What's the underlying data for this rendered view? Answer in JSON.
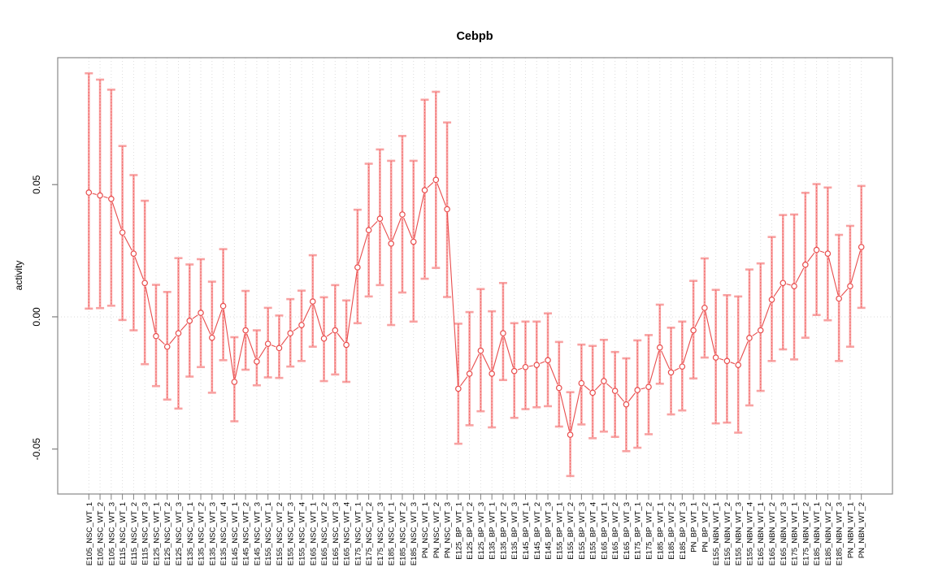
{
  "chart_data": {
    "type": "line",
    "title": "Cebpb",
    "xlabel": "",
    "ylabel": "activity",
    "ylim": [
      -0.067,
      0.098
    ],
    "grid": "dotted vertical gridline per category, dotted horizontal line at y=0",
    "legend": "none",
    "marker": "open-circle",
    "line_style": "segments-with-gaps",
    "colors": {
      "series": "#e84c4c",
      "error_bar": "#f8a2a2",
      "error_center_dotted": "#ef5f5f",
      "gridline": "#dcdcdc",
      "zero_line": "#d8d8d8",
      "axis_box": "#888888",
      "tick": "#808080",
      "text": "#000000"
    },
    "yticks": {
      "values": [
        0.05,
        0.0,
        -0.05
      ],
      "labels": [
        "0.05",
        "0.00",
        "-0.05"
      ]
    },
    "categories": [
      "E105_NSC_WT_1",
      "E105_NSC_WT_2",
      "E105_NSC_WT_3",
      "E115_NSC_WT_1",
      "E115_NSC_WT_2",
      "E115_NSC_WT_3",
      "E125_NSC_WT_1",
      "E125_NSC_WT_2",
      "E125_NSC_WT_3",
      "E135_NSC_WT_1",
      "E135_NSC_WT_2",
      "E135_NSC_WT_3",
      "E135_NSC_WT_4",
      "E145_NSC_WT_1",
      "E145_NSC_WT_2",
      "E145_NSC_WT_3",
      "E155_NSC_WT_1",
      "E155_NSC_WT_2",
      "E155_NSC_WT_3",
      "E155_NSC_WT_4",
      "E165_NSC_WT_1",
      "E165_NSC_WT_2",
      "E165_NSC_WT_3",
      "E165_NSC_WT_4",
      "E175_NSC_WT_1",
      "E175_NSC_WT_2",
      "E175_NSC_WT_3",
      "E185_NSC_WT_1",
      "E185_NSC_WT_2",
      "E185_NSC_WT_3",
      "PN_NSC_WT_1",
      "PN_NSC_WT_2",
      "PN_NSC_WT_3",
      "E125_BP_WT_1",
      "E125_BP_WT_2",
      "E125_BP_WT_3",
      "E135_BP_WT_1",
      "E135_BP_WT_2",
      "E135_BP_WT_3",
      "E145_BP_WT_1",
      "E145_BP_WT_2",
      "E145_BP_WT_3",
      "E155_BP_WT_1",
      "E155_BP_WT_2",
      "E155_BP_WT_3",
      "E155_BP_WT_4",
      "E165_BP_WT_1",
      "E165_BP_WT_2",
      "E165_BP_WT_3",
      "E175_BP_WT_1",
      "E175_BP_WT_2",
      "E185_BP_WT_1",
      "E185_BP_WT_2",
      "E185_BP_WT_3",
      "PN_BP_WT_1",
      "PN_BP_WT_2",
      "E155_NBN_WT_1",
      "E155_NBN_WT_2",
      "E155_NBN_WT_3",
      "E155_NBN_WT_4",
      "E165_NBN_WT_1",
      "E165_NBN_WT_2",
      "E165_NBN_WT_3",
      "E175_NBN_WT_1",
      "E175_NBN_WT_2",
      "E185_NBN_WT_1",
      "E185_NBN_WT_2",
      "E185_NBN_WT_3",
      "PN_NBN_WT_1",
      "PN_NBN_WT_2"
    ],
    "values": [
      0.047,
      0.0459,
      0.0446,
      0.0319,
      0.0239,
      0.0128,
      -0.0073,
      -0.0113,
      -0.0062,
      -0.0015,
      0.0015,
      -0.0079,
      0.0041,
      -0.0246,
      -0.0051,
      -0.0169,
      -0.0102,
      -0.0118,
      -0.0062,
      -0.0031,
      0.0058,
      -0.0082,
      -0.0051,
      -0.0106,
      0.0187,
      0.0328,
      0.0371,
      0.0277,
      0.0387,
      0.0284,
      0.0479,
      0.0518,
      0.0407,
      -0.0272,
      -0.0215,
      -0.0128,
      -0.0215,
      -0.0062,
      -0.0205,
      -0.019,
      -0.0182,
      -0.0164,
      -0.0269,
      -0.0446,
      -0.0251,
      -0.0287,
      -0.0243,
      -0.028,
      -0.0331,
      -0.0277,
      -0.0265,
      -0.0116,
      -0.021,
      -0.0188,
      -0.0051,
      0.0034,
      -0.0154,
      -0.0167,
      -0.0182,
      -0.008,
      -0.0051,
      0.0065,
      0.0128,
      0.0116,
      0.0197,
      0.0253,
      0.0239,
      0.0069,
      0.0116,
      0.0264
    ],
    "err_low": [
      0.0031,
      0.0033,
      0.0042,
      -0.0012,
      -0.0051,
      -0.0179,
      -0.0262,
      -0.0313,
      -0.0347,
      -0.0226,
      -0.019,
      -0.0287,
      -0.0164,
      -0.0395,
      -0.02,
      -0.0259,
      -0.0229,
      -0.0231,
      -0.0188,
      -0.0167,
      -0.0113,
      -0.0243,
      -0.0218,
      -0.0246,
      -0.0024,
      0.0077,
      0.012,
      -0.0031,
      0.0092,
      -0.0018,
      0.0144,
      0.0185,
      0.0075,
      -0.048,
      -0.041,
      -0.0357,
      -0.0418,
      -0.0239,
      -0.0382,
      -0.0349,
      -0.0342,
      -0.0338,
      -0.0415,
      -0.0602,
      -0.0407,
      -0.0459,
      -0.0434,
      -0.0454,
      -0.0508,
      -0.0495,
      -0.0444,
      -0.0253,
      -0.0369,
      -0.0354,
      -0.0233,
      -0.0154,
      -0.0403,
      -0.04,
      -0.0438,
      -0.0335,
      -0.028,
      -0.0167,
      -0.0123,
      -0.0161,
      -0.0079,
      0.0007,
      -0.0013,
      -0.0167,
      -0.0113,
      0.0034
    ],
    "err_high": [
      0.0921,
      0.0897,
      0.0859,
      0.0646,
      0.0536,
      0.0439,
      0.0121,
      0.0094,
      0.0222,
      0.0198,
      0.0218,
      0.0133,
      0.0256,
      -0.0077,
      0.0098,
      -0.0051,
      0.0034,
      0.0005,
      0.0067,
      0.0099,
      0.0233,
      0.0074,
      0.012,
      0.0062,
      0.0405,
      0.0579,
      0.0633,
      0.059,
      0.0684,
      0.059,
      0.0821,
      0.0851,
      0.0735,
      -0.0026,
      0.0018,
      0.0105,
      0.0021,
      0.0128,
      -0.0024,
      -0.0018,
      -0.0018,
      0.0013,
      -0.0095,
      -0.0285,
      -0.0105,
      -0.011,
      -0.0087,
      -0.0133,
      -0.0157,
      -0.0089,
      -0.0069,
      0.0046,
      -0.0041,
      -0.0018,
      0.0136,
      0.0221,
      0.0102,
      0.0082,
      0.0077,
      0.0179,
      0.0202,
      0.0302,
      0.0385,
      0.0387,
      0.0469,
      0.0502,
      0.0489,
      0.031,
      0.0344,
      0.0495
    ]
  }
}
